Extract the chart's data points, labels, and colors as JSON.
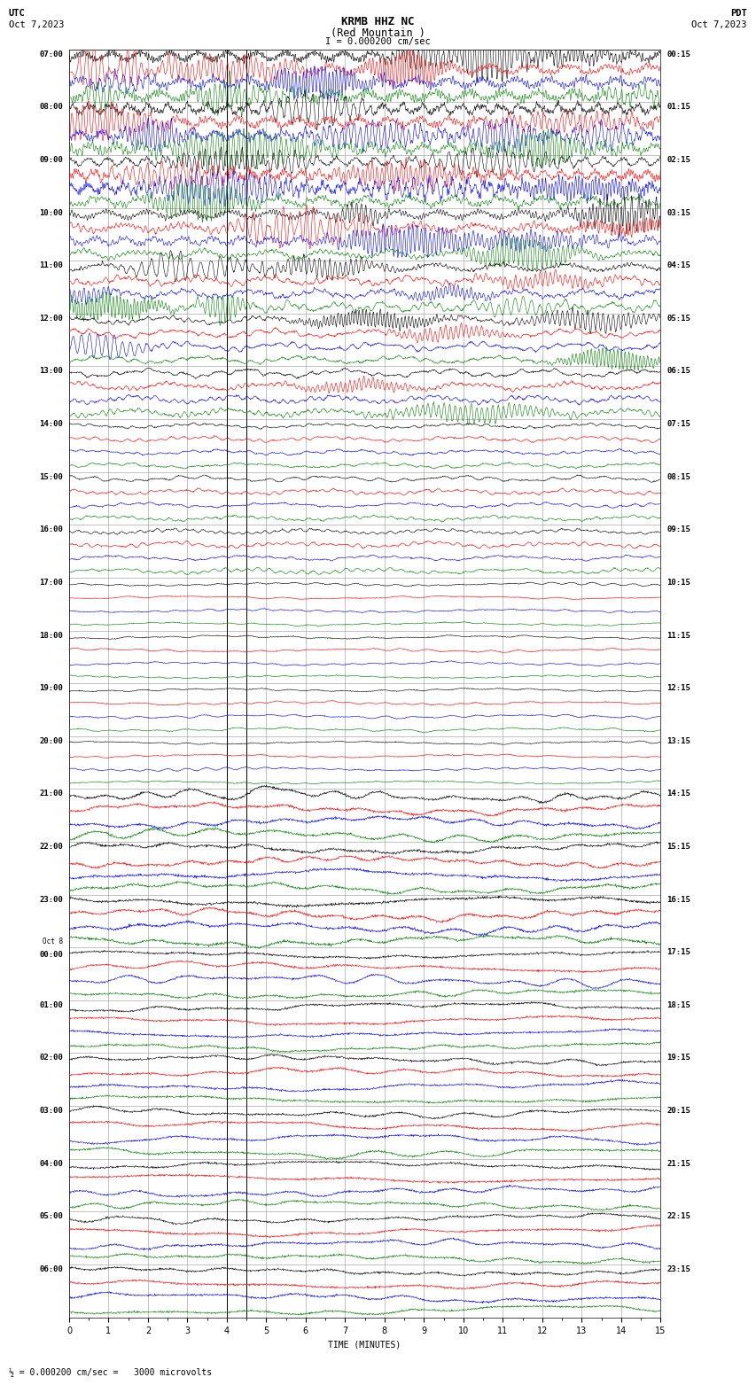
{
  "title_line1": "KRMB HHZ NC",
  "title_line2": "(Red Mountain )",
  "scale_text": "I = 0.000200 cm/sec",
  "bottom_text": "½ = 0.000200 cm/sec =   3000 microvolts",
  "utc_label": "UTC",
  "utc_date": "Oct 7,2023",
  "pdt_label": "PDT",
  "pdt_date": "Oct 7,2023",
  "xlabel": "TIME (MINUTES)",
  "left_times": [
    "07:00",
    "08:00",
    "09:00",
    "10:00",
    "11:00",
    "12:00",
    "13:00",
    "14:00",
    "15:00",
    "16:00",
    "17:00",
    "18:00",
    "19:00",
    "20:00",
    "21:00",
    "22:00",
    "23:00",
    "Oct 8|00:00",
    "01:00",
    "02:00",
    "03:00",
    "04:00",
    "05:00",
    "06:00"
  ],
  "right_times": [
    "00:15",
    "01:15",
    "02:15",
    "03:15",
    "04:15",
    "05:15",
    "06:15",
    "07:15",
    "08:15",
    "09:15",
    "10:15",
    "11:15",
    "12:15",
    "13:15",
    "14:15",
    "15:15",
    "16:15",
    "17:15",
    "18:15",
    "19:15",
    "20:15",
    "21:15",
    "22:15",
    "23:15"
  ],
  "n_rows": 24,
  "n_traces_per_row": 4,
  "colors": [
    "black",
    "red",
    "blue",
    "green"
  ],
  "x_ticks": [
    0,
    1,
    2,
    3,
    4,
    5,
    6,
    7,
    8,
    9,
    10,
    11,
    12,
    13,
    14,
    15
  ],
  "bg_color": "white",
  "grid_color": "#aaaaaa",
  "vlines": [
    4.0,
    4.5
  ],
  "seed": 42
}
